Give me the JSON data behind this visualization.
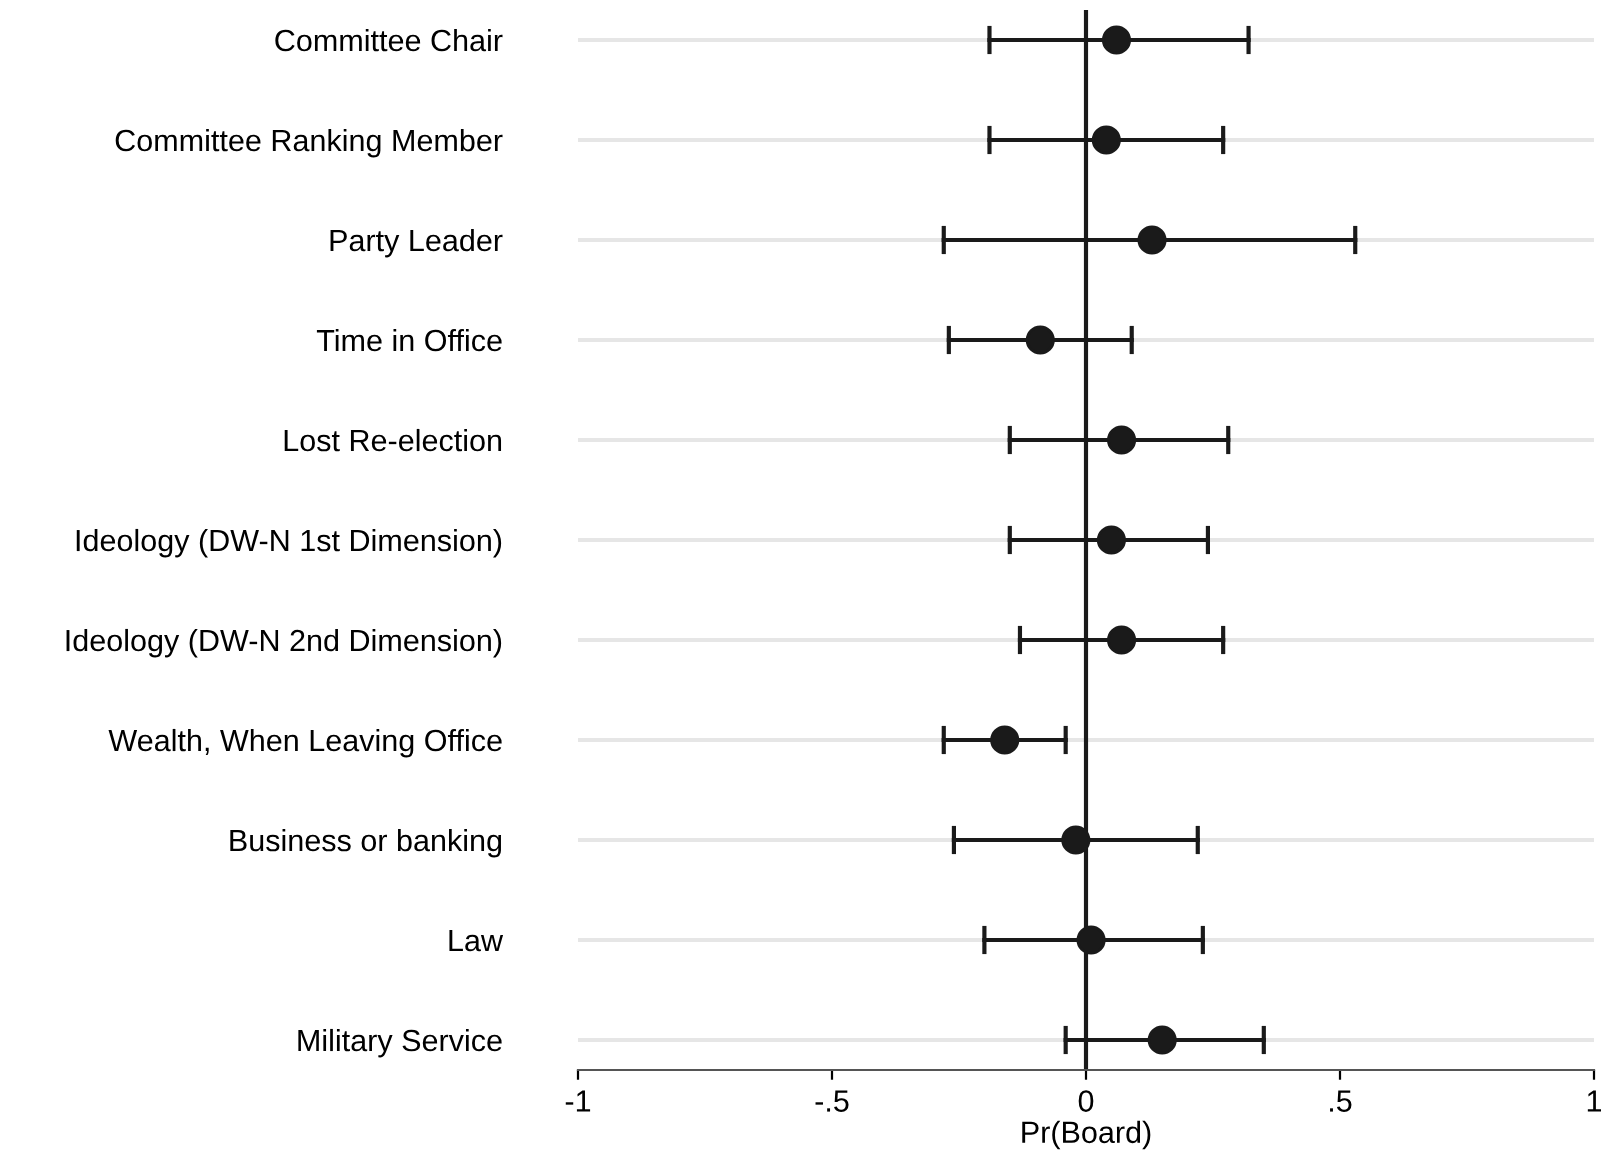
{
  "chart_data": {
    "type": "scatter",
    "orientation": "horizontal",
    "xlabel": "Pr(Board)",
    "categories": [
      "Committee Chair",
      "Committee Ranking Member",
      "Party Leader",
      "Time in Office",
      "Lost Re-election",
      "Ideology (DW-N 1st Dimension)",
      "Ideology (DW-N 2nd Dimension)",
      "Wealth, When Leaving Office",
      "Business or banking",
      "Law",
      "Military Service"
    ],
    "values": [
      0.06,
      0.04,
      0.13,
      -0.09,
      0.07,
      0.05,
      0.07,
      -0.16,
      -0.02,
      0.01,
      0.15
    ],
    "errors": [
      [
        -0.19,
        0.32
      ],
      [
        -0.19,
        0.27
      ],
      [
        -0.28,
        0.53
      ],
      [
        -0.27,
        0.09
      ],
      [
        -0.15,
        0.28
      ],
      [
        -0.15,
        0.24
      ],
      [
        -0.13,
        0.27
      ],
      [
        -0.28,
        -0.04
      ],
      [
        -0.26,
        0.22
      ],
      [
        -0.2,
        0.23
      ],
      [
        -0.04,
        0.35
      ]
    ],
    "color": "#1a1a1a",
    "marker": "circle",
    "xlim": [
      -1,
      1
    ],
    "xticks": [
      {
        "value": -1,
        "label": "-1"
      },
      {
        "value": -0.5,
        "label": "-.5"
      },
      0,
      {
        "value": 0.5,
        "label": ".5"
      },
      1
    ],
    "grid": "y",
    "ref_lines": [
      {
        "axis": "x",
        "value": 0,
        "color": "#1a1a1a"
      }
    ]
  }
}
